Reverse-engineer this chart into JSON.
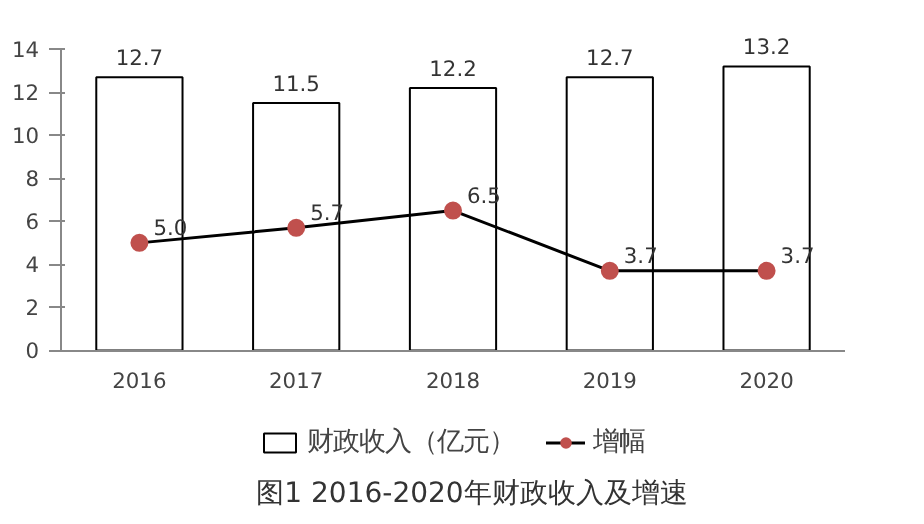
{
  "chart_data": {
    "type": "bar",
    "title": "图1 2016-2020年财政收入及增速",
    "categories": [
      "2016",
      "2017",
      "2018",
      "2019",
      "2020"
    ],
    "series": [
      {
        "name": "财政收入（亿元）",
        "color": "#ffffff",
        "values": [
          12.7,
          11.5,
          12.2,
          12.7,
          13.2
        ]
      },
      {
        "name": "增幅",
        "type": "line",
        "color": "#c0504d",
        "values": [
          5.0,
          5.7,
          6.5,
          3.7,
          3.7
        ],
        "value_labels": [
          "5.0",
          "5.7",
          "6.5",
          "3.7",
          "3.7"
        ]
      }
    ],
    "ylim": [
      0,
      14
    ],
    "yticks": [
      0,
      2,
      4,
      6,
      8,
      10,
      12,
      14
    ],
    "grid": false,
    "legend": "bottom",
    "marker": "circle",
    "line_style": "solid",
    "data_labels": true
  }
}
